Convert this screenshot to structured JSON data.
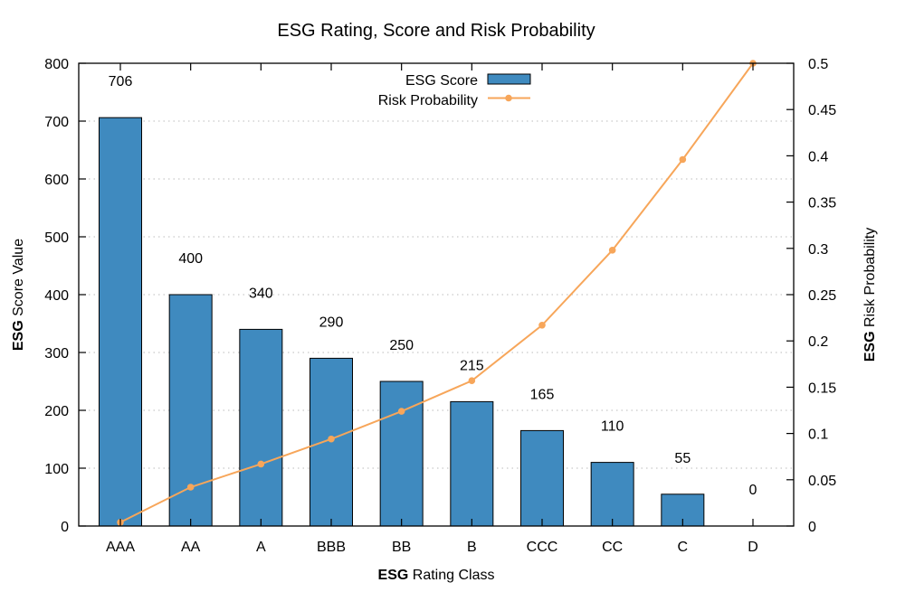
{
  "chart_data": {
    "type": "bar",
    "title": "ESG Rating, Score and Risk Probability",
    "xlabel": {
      "bold": "ESG",
      "rest": " Rating Class"
    },
    "ylabel": {
      "bold": "ESG",
      "rest": " Score Value"
    },
    "y2label": {
      "bold": "ESG",
      "rest": " Risk Probability"
    },
    "categories": [
      "AAA",
      "AA",
      "A",
      "BBB",
      "BB",
      "B",
      "CCC",
      "CC",
      "C",
      "D"
    ],
    "series": [
      {
        "name": "ESG Score",
        "type": "bar",
        "axis": "left",
        "color": "#3f8abf",
        "values": [
          706,
          400,
          340,
          290,
          250,
          215,
          165,
          110,
          55,
          0
        ],
        "labels": [
          "706",
          "400",
          "340",
          "290",
          "250",
          "215",
          "165",
          "110",
          "55",
          "0"
        ]
      },
      {
        "name": "Risk Probability",
        "type": "line",
        "axis": "right",
        "color": "#f7a65a",
        "values": [
          0.004,
          0.042,
          0.067,
          0.094,
          0.124,
          0.157,
          0.217,
          0.298,
          0.396,
          0.5
        ]
      }
    ],
    "ylim": [
      0,
      800
    ],
    "yticks": [
      0,
      100,
      200,
      300,
      400,
      500,
      600,
      700,
      800
    ],
    "ytick_labels": [
      "0",
      "100",
      "200",
      "300",
      "400",
      "500",
      "600",
      "700",
      "800"
    ],
    "y2lim": [
      0,
      0.5
    ],
    "y2ticks": [
      0,
      0.05,
      0.1,
      0.15,
      0.2,
      0.25,
      0.3,
      0.35,
      0.4,
      0.45,
      0.5
    ],
    "y2tick_labels": [
      "0",
      "0.05",
      "0.1",
      "0.15",
      "0.2",
      "0.25",
      "0.3",
      "0.35",
      "0.4",
      "0.45",
      "0.5"
    ],
    "grid": "horizontal dotted on left-axis ticks",
    "legend_position": "top-center",
    "legend": [
      {
        "label": "ESG Score",
        "kind": "bar"
      },
      {
        "label": "Risk Probability",
        "kind": "line-point"
      }
    ]
  }
}
